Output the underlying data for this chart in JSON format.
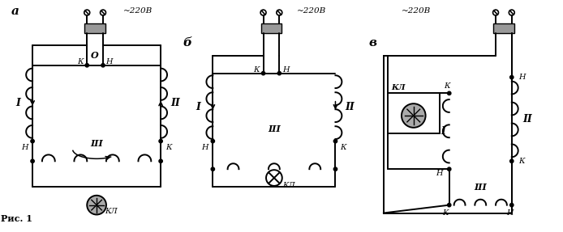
{
  "bg_color": "#ffffff",
  "fig_width": 6.94,
  "fig_height": 2.87,
  "dpi": 100,
  "label_a": "а",
  "label_b": "б",
  "label_c": "в",
  "label_ris": "Рис. 1",
  "voltage": "~220В"
}
